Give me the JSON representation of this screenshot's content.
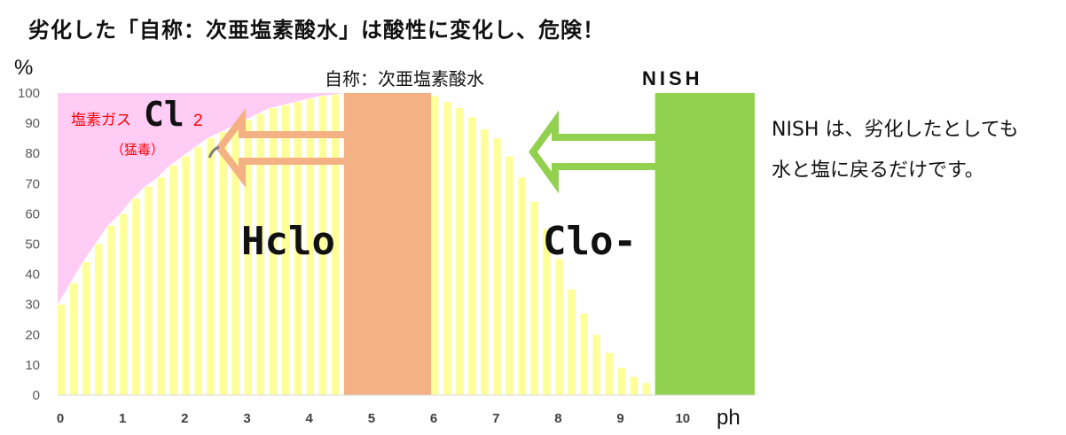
{
  "page": {
    "title": "劣化した「自称：次亜塩素酸水」は酸性に変化し、危険！"
  },
  "annotations": {
    "gas_label": "塩素ガス",
    "gas_formula_main": "Cl",
    "gas_formula_sub": "2",
    "gas_note": "（猛毒）",
    "hclo_label": "Hclo",
    "clo_label": "Clo-",
    "self_named_label": "自称：次亜塩素酸水",
    "nish_label": "NISH",
    "side_note_line1": "NISH は、劣化したとしても",
    "side_note_line2": "水と塩に戻るだけです。"
  },
  "colors": {
    "cl2_region": "#ffccf5",
    "hclo_bars": "#ffff99",
    "self_named_band": "#f4b183",
    "nish_band": "#92d050",
    "gas_text": "#ff0000",
    "arrow_orange": "#f4b183",
    "arrow_green": "#92d050"
  },
  "chart_data": {
    "type": "area",
    "x_label": "ph",
    "y_label": "%",
    "x_range": [
      0,
      10
    ],
    "y_range": [
      0,
      100
    ],
    "x_ticks": [
      "0",
      "1",
      "2",
      "3",
      "4",
      "5",
      "6",
      "7",
      "8",
      "9",
      "10"
    ],
    "y_ticks": [
      "0",
      "10",
      "20",
      "30",
      "40",
      "50",
      "60",
      "70",
      "80",
      "90",
      "100"
    ],
    "series": [
      {
        "name": "Cl2",
        "x": [
          0,
          1,
          2,
          3,
          4,
          4.6
        ],
        "y": [
          100,
          100,
          100,
          100,
          100,
          100
        ]
      },
      {
        "name": "HClO",
        "x": [
          0,
          0.2,
          0.4,
          0.6,
          0.8,
          1,
          1.2,
          1.4,
          1.6,
          1.8,
          2,
          2.2,
          2.4,
          2.6,
          2.8,
          3,
          3.2,
          3.4,
          3.6,
          3.8,
          4,
          4.2,
          4.4,
          4.6,
          4.8,
          5,
          5.2,
          5.4,
          5.6,
          5.8,
          6,
          6.2,
          6.4,
          6.6,
          6.8,
          7,
          7.2,
          7.4,
          7.6,
          7.8,
          8,
          8.2,
          8.4,
          8.6,
          8.8,
          9,
          9.2,
          9.4
        ],
        "y": [
          30,
          37,
          44,
          50,
          56,
          60,
          65,
          69,
          72,
          76,
          79,
          82,
          85,
          87,
          89,
          91,
          93,
          95,
          96,
          97,
          98,
          99,
          99.5,
          100,
          100,
          100,
          100,
          100,
          100,
          99.5,
          99,
          97,
          95,
          92,
          88,
          85,
          79,
          72,
          64,
          55,
          45,
          35,
          27,
          20,
          14,
          9,
          6,
          4
        ]
      }
    ],
    "bands": [
      {
        "name": "自称：次亜塩素酸水",
        "x_start": 4.6,
        "x_end": 6.0
      },
      {
        "name": "NISH",
        "x_start": 9.6,
        "x_end": 11.5
      }
    ]
  }
}
